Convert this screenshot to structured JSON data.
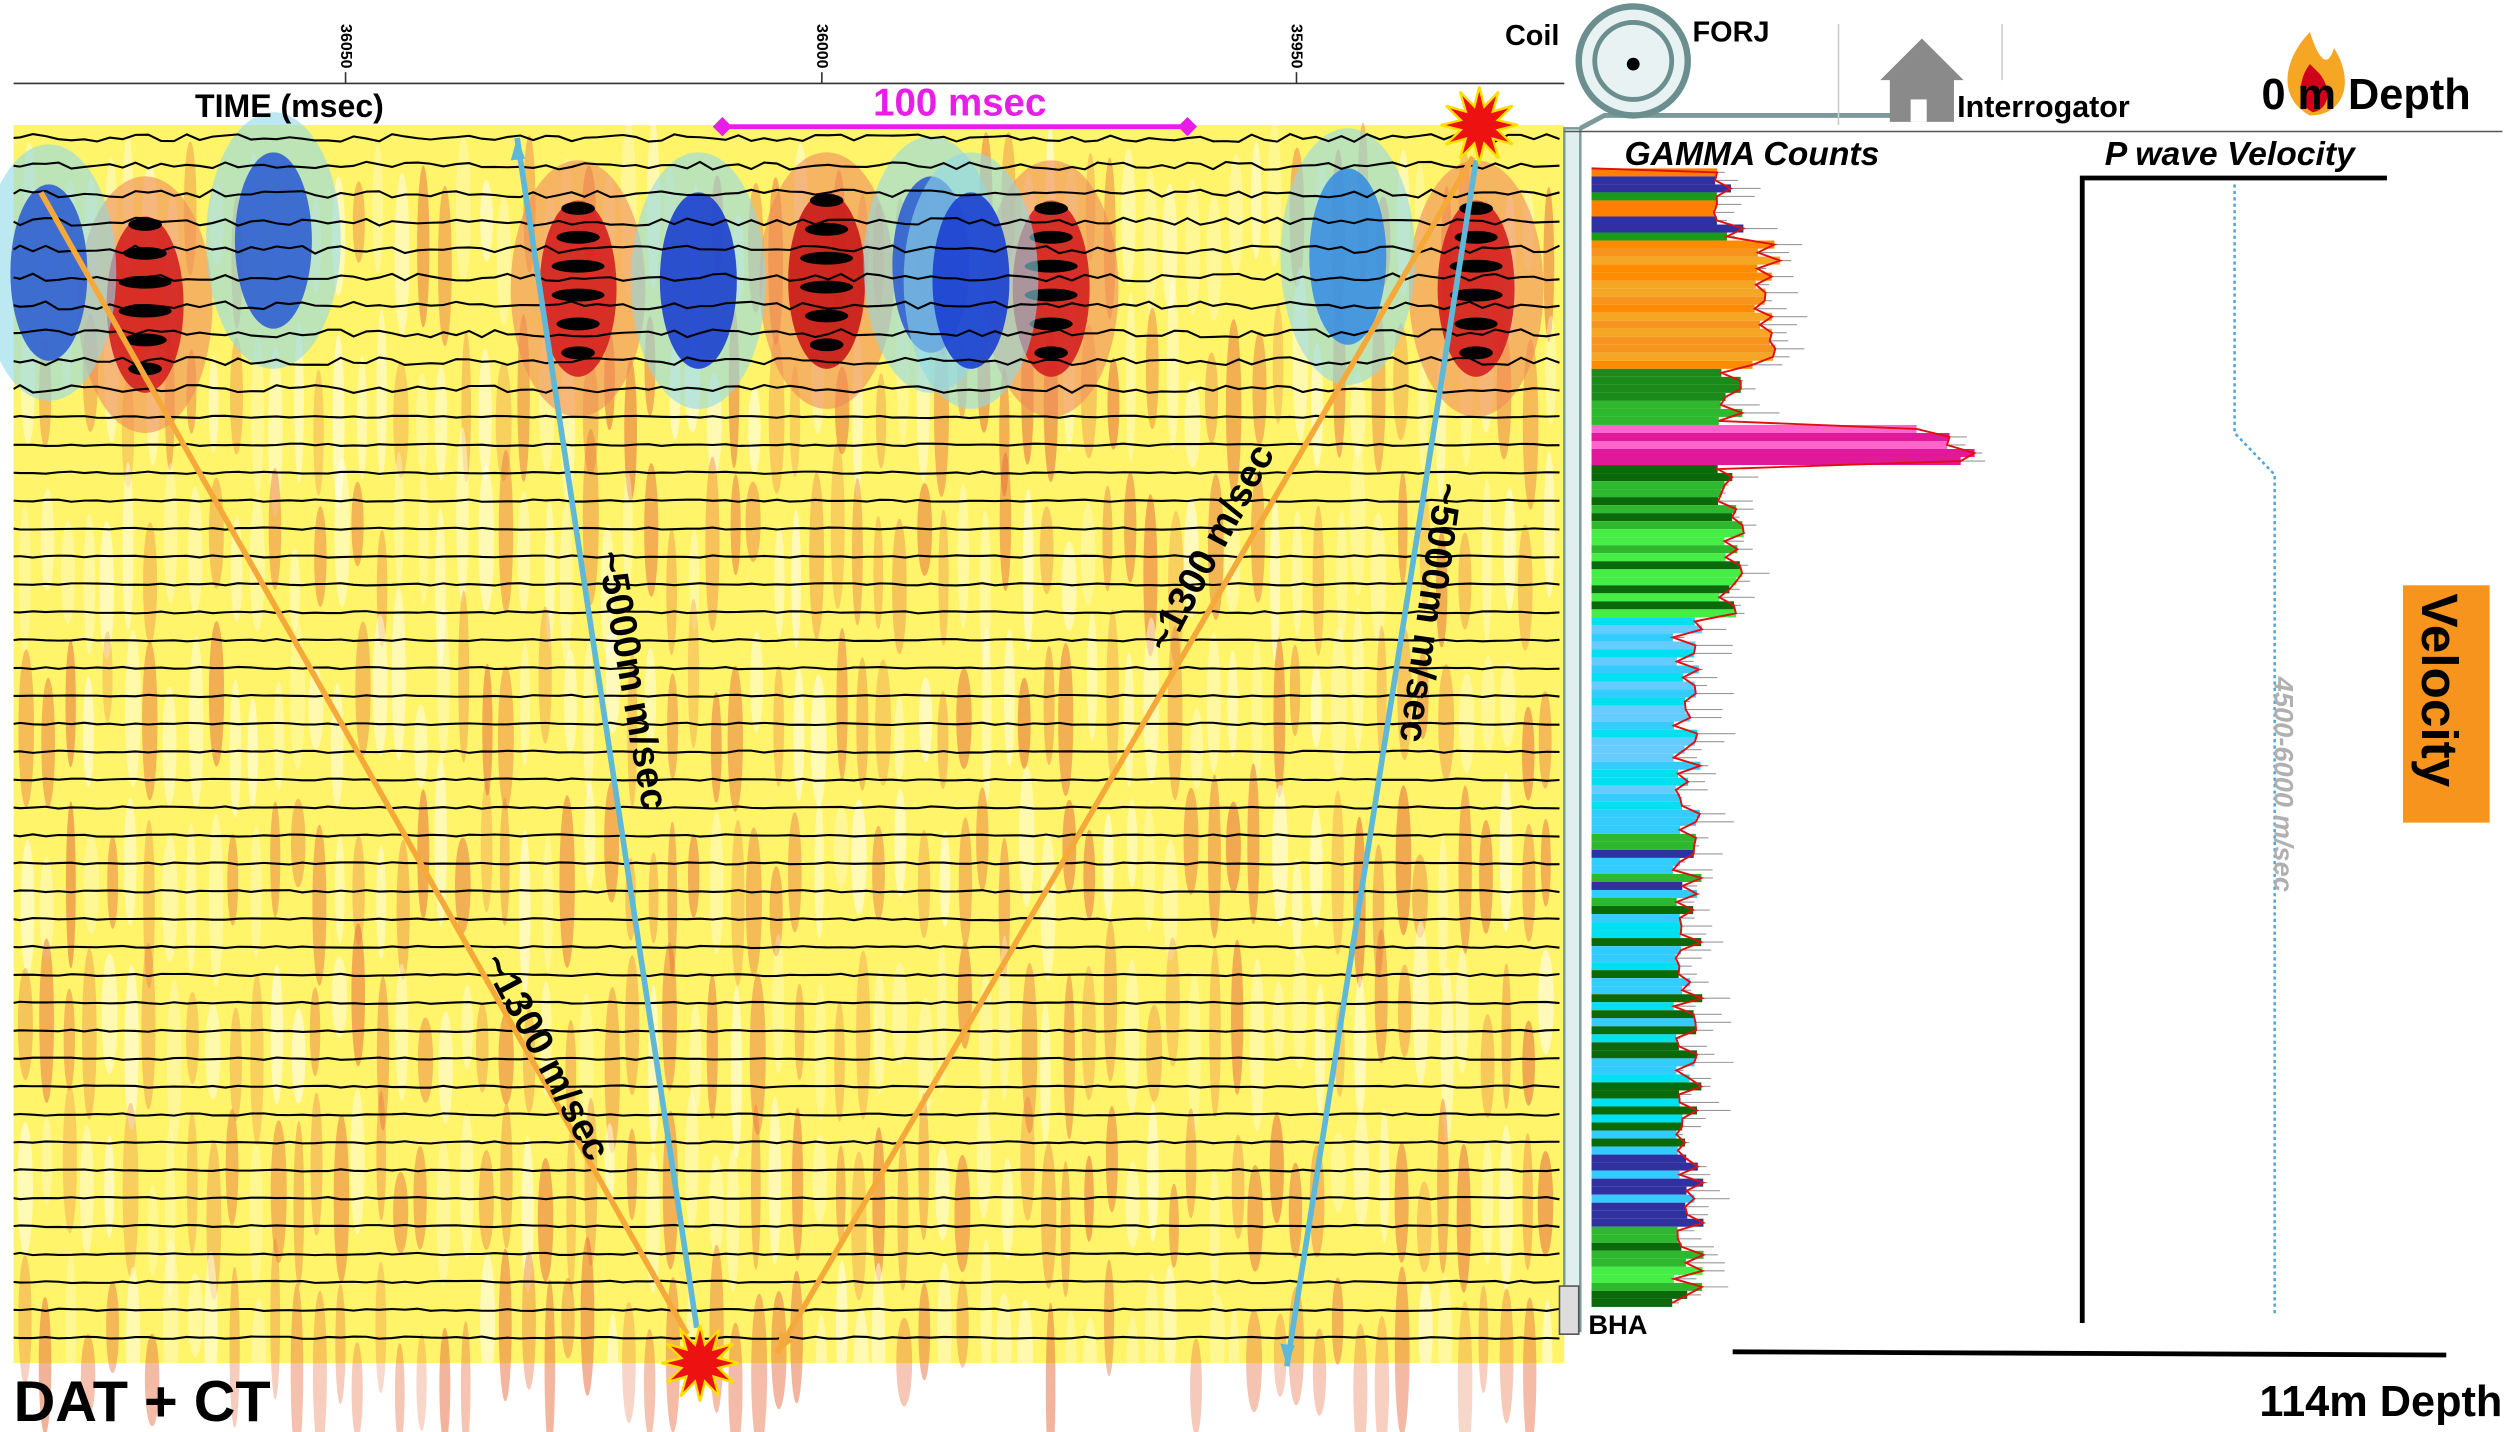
{
  "header": {
    "time_ticks": [
      36050,
      36000,
      35950
    ],
    "time_label": "TIME (msec)",
    "scale_bar": "100 msec"
  },
  "equipment": {
    "coil": "Coil",
    "forj": "FORJ",
    "interrogator": "Interrogator",
    "bha": "BHA"
  },
  "depth": {
    "top": "0 m Depth",
    "bottom": "114m Depth"
  },
  "tracks": {
    "gamma": "GAMMA Counts",
    "velocity": "P wave Velocity",
    "velocity_range": "4500-6000 m/sec",
    "velocity_tag": "Velocity"
  },
  "annotations": [
    "~5000m m/sec",
    "~1300 m/sec",
    "~1300 m/sec",
    "~5000m m/sec"
  ],
  "footer": {
    "title": "DAT + CT"
  }
}
